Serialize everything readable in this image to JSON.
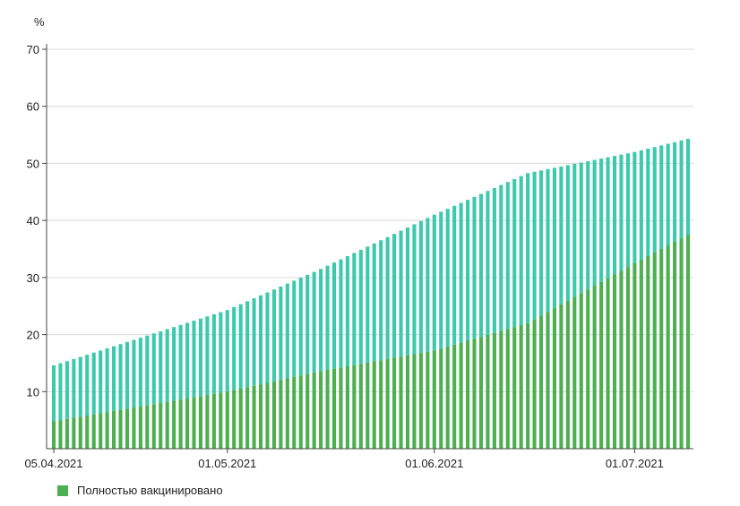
{
  "chart_data": {
    "type": "bar",
    "stacked": true,
    "ylabel": "%",
    "ylim": [
      0,
      70
    ],
    "yticks": [
      10,
      20,
      30,
      40,
      50,
      60,
      70
    ],
    "grid": true,
    "legend_position": "bottom-left",
    "x_start": "05.04.2021",
    "x_end": "09.07.2021",
    "x_tick_labels": [
      "05.04.2021",
      "01.05.2021",
      "01.06.2021",
      "01.07.2021"
    ],
    "series": [
      {
        "name": "Полностью вакцинировано",
        "color": "#4caf50",
        "anchors": [
          [
            "05.04.2021",
            4.8
          ],
          [
            "01.05.2021",
            10.0
          ],
          [
            "15.05.2021",
            13.6
          ],
          [
            "01.06.2021",
            17.2
          ],
          [
            "15.06.2021",
            22.0
          ],
          [
            "01.07.2021",
            32.5
          ],
          [
            "09.07.2021",
            37.5
          ]
        ]
      },
      {
        "name": "",
        "color": "#3ec9ad",
        "total_anchors": [
          [
            "05.04.2021",
            14.6
          ],
          [
            "01.05.2021",
            24.3
          ],
          [
            "15.05.2021",
            31.5
          ],
          [
            "01.06.2021",
            41.0
          ],
          [
            "15.06.2021",
            48.3
          ],
          [
            "01.07.2021",
            52.0
          ],
          [
            "09.07.2021",
            54.3
          ]
        ]
      }
    ]
  }
}
